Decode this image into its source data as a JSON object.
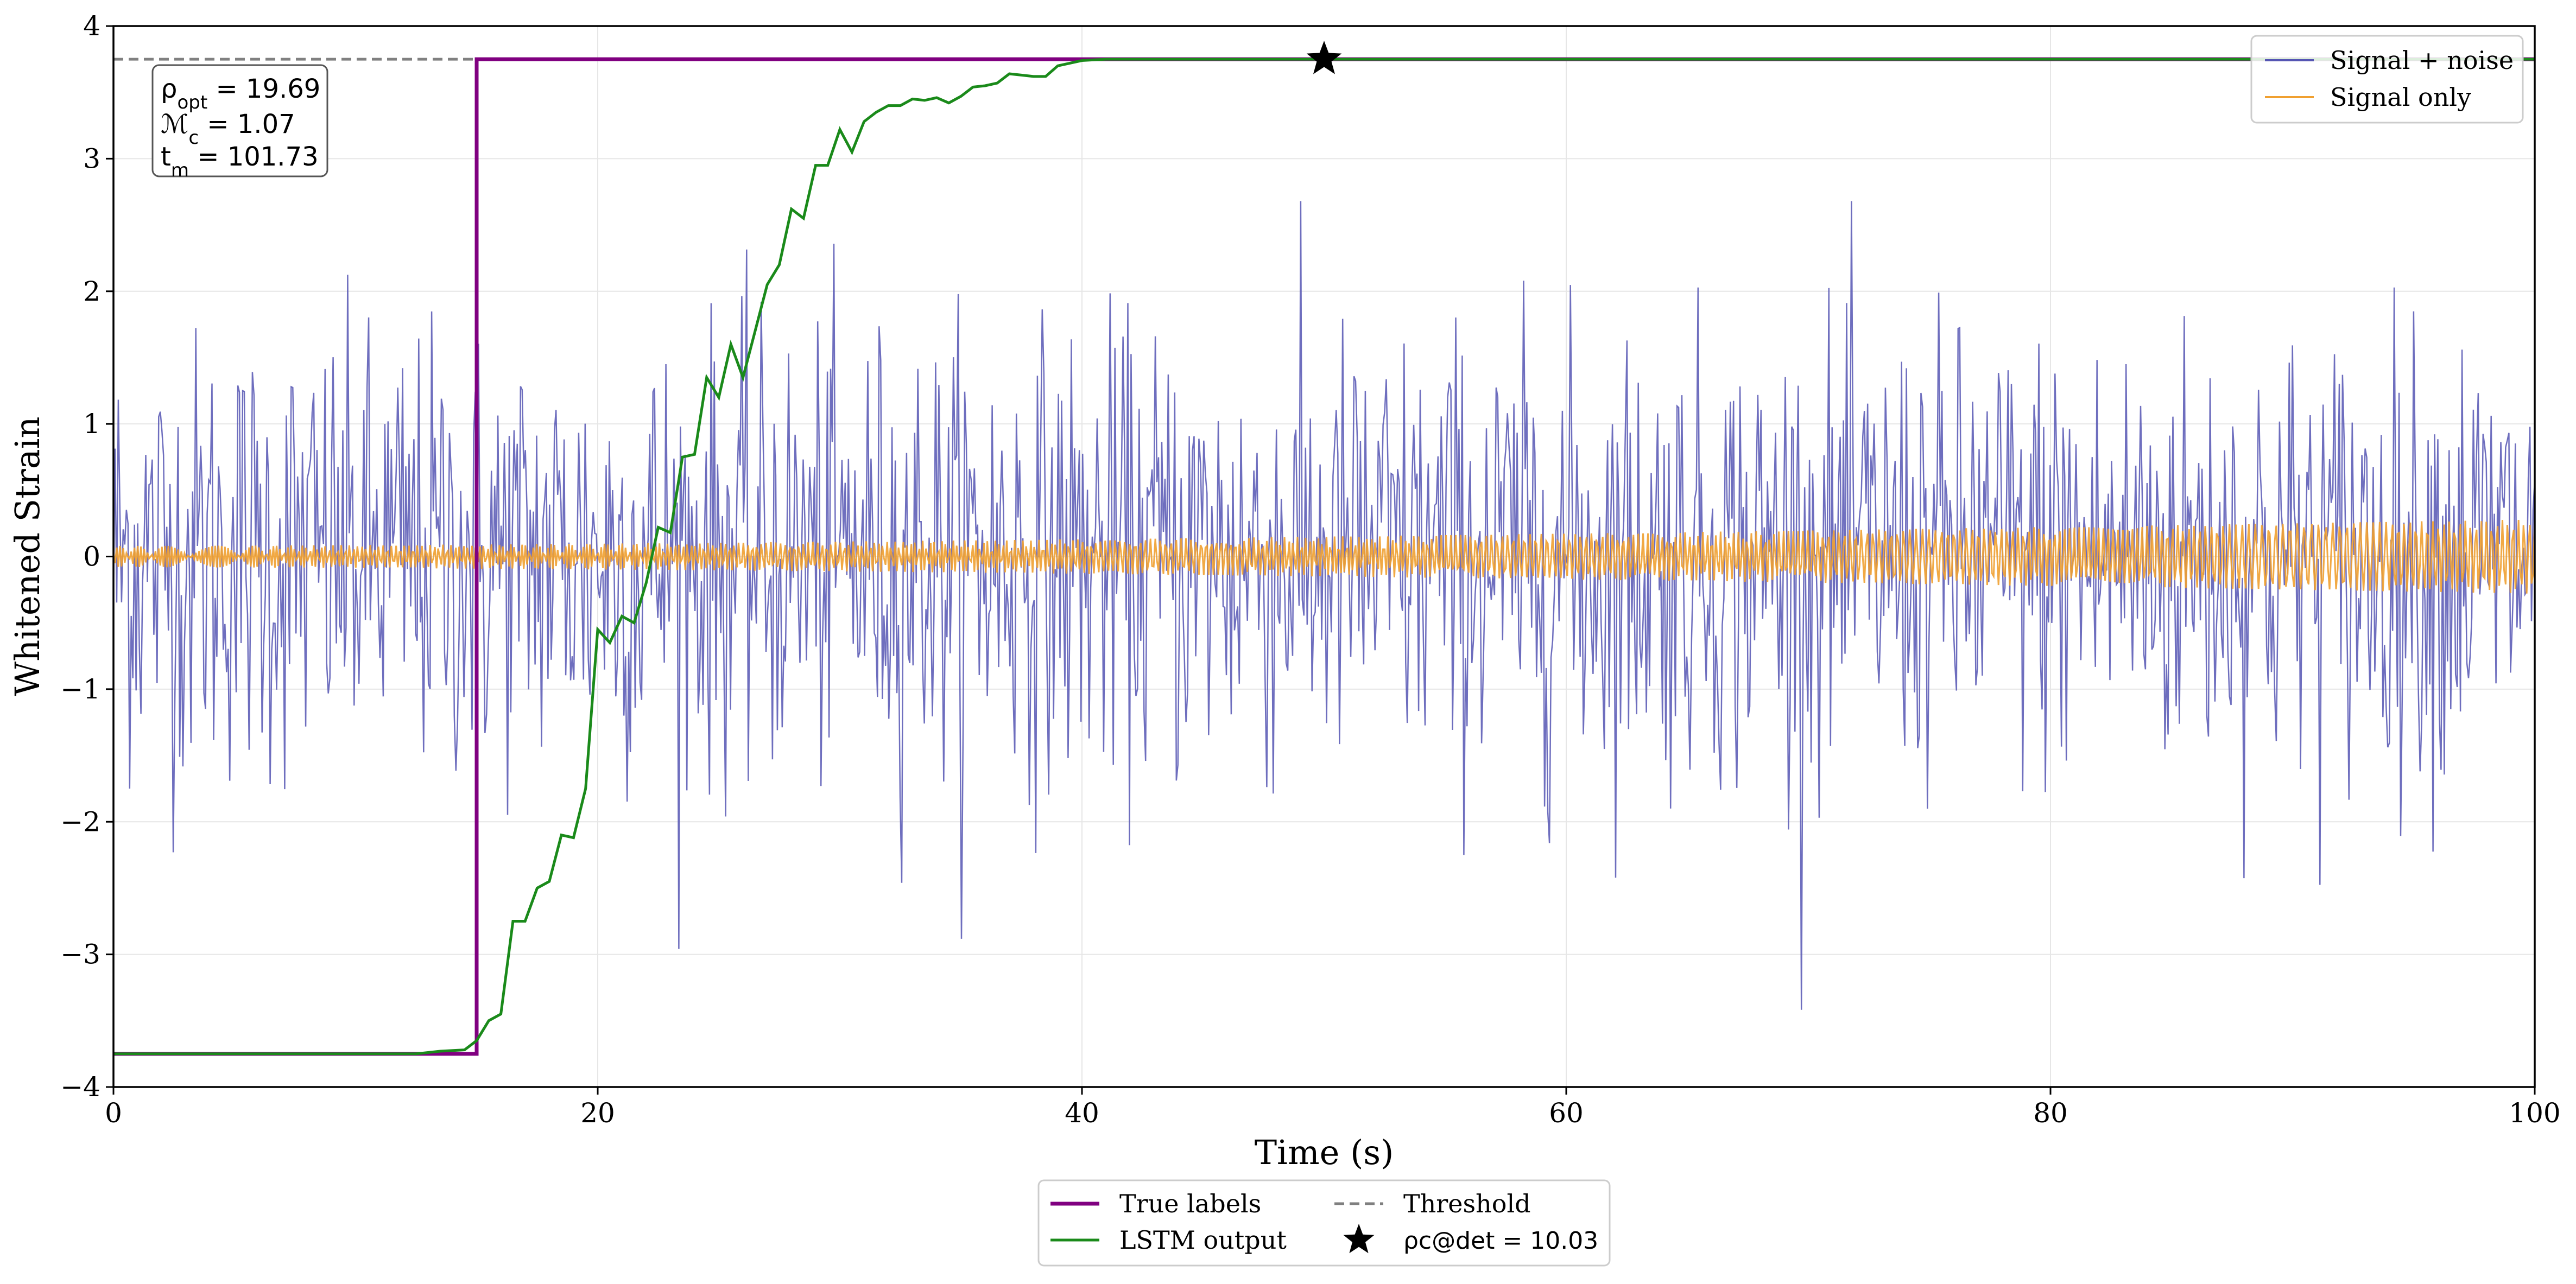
{
  "colors": {
    "signal_noise": "#5555b3",
    "signal_only": "#f0a030",
    "true_labels": "#800080",
    "lstm": "#1a8a1a",
    "threshold": "#808080",
    "star": "#000000",
    "grid": "#e6e6e6"
  },
  "chart_data": {
    "type": "line",
    "xlabel": "Time (s)",
    "ylabel": "Whitened Strain",
    "xlim": [
      0,
      100
    ],
    "ylim": [
      -4,
      4
    ],
    "x_ticks": [
      0,
      20,
      40,
      60,
      80,
      100
    ],
    "x_tick_labels": [
      "0",
      "20",
      "40",
      "60",
      "80",
      "100"
    ],
    "y_ticks": [
      -4,
      -3,
      -2,
      -1,
      0,
      1,
      2,
      3,
      4
    ],
    "y_tick_labels": [
      "−4",
      "−3",
      "−2",
      "−1",
      "0",
      "1",
      "2",
      "3",
      "4"
    ],
    "grid": true,
    "threshold": 3.75,
    "true_label_step_x": 15,
    "true_label_low": -3.75,
    "true_label_high": 3.75,
    "lstm_output": {
      "x": [
        0,
        5,
        10,
        12.5,
        13.5,
        14.5,
        15,
        15.5,
        16,
        16.5,
        17,
        17.5,
        18,
        18.5,
        19,
        19.5,
        20,
        20.5,
        21,
        21.5,
        22,
        22.5,
        23,
        23.5,
        24,
        24.5,
        25,
        25.5,
        26,
        26.5,
        27,
        27.5,
        28,
        28.5,
        29,
        29.5,
        30,
        30.5,
        31,
        31.5,
        32,
        32.5,
        33,
        33.5,
        34,
        34.5,
        35,
        35.5,
        36,
        36.5,
        37,
        37.5,
        38,
        38.5,
        39,
        39.5,
        40,
        40.5,
        41,
        41.5,
        42,
        43,
        45,
        50,
        60,
        80,
        100
      ],
      "y": [
        -3.75,
        -3.75,
        -3.75,
        -3.75,
        -3.73,
        -3.72,
        -3.65,
        -3.5,
        -3.45,
        -2.75,
        -2.75,
        -2.5,
        -2.45,
        -2.1,
        -2.12,
        -1.75,
        -0.55,
        -0.65,
        -0.45,
        -0.5,
        -0.2,
        0.22,
        0.18,
        0.75,
        0.77,
        1.35,
        1.2,
        1.6,
        1.35,
        1.7,
        2.05,
        2.2,
        2.62,
        2.55,
        2.95,
        2.95,
        3.22,
        3.05,
        3.28,
        3.35,
        3.4,
        3.4,
        3.45,
        3.44,
        3.46,
        3.42,
        3.47,
        3.54,
        3.55,
        3.57,
        3.64,
        3.63,
        3.62,
        3.62,
        3.7,
        3.72,
        3.74,
        3.745,
        3.75,
        3.75,
        3.75,
        3.75,
        3.75,
        3.75,
        3.75,
        3.75,
        3.75
      ]
    },
    "detection": {
      "x": 50,
      "y": 3.75
    },
    "signal_plus_noise": {
      "n_samples": 1500,
      "std": 0.85,
      "x_range": [
        0,
        100
      ]
    },
    "signal_only": {
      "n_samples": 1500,
      "amplitude_start": 0.08,
      "amplitude_end": 0.28,
      "x_range": [
        0,
        100
      ]
    },
    "legend_upper": [
      {
        "label": "Signal + noise",
        "color_key": "signal_noise"
      },
      {
        "label": "Signal only",
        "color_key": "signal_only"
      }
    ],
    "legend_lower": [
      {
        "label": "True labels",
        "color_key": "true_labels",
        "style": "solid"
      },
      {
        "label": "LSTM output",
        "color_key": "lstm",
        "style": "solid"
      },
      {
        "label": "Threshold",
        "color_key": "threshold",
        "style": "dashed"
      },
      {
        "label": "ρc@det = 10.03",
        "color_key": "star",
        "style": "star"
      }
    ],
    "annotation": {
      "rho_opt": "ρopt = 19.69",
      "chirp_mass": "ℳc = 1.07",
      "t_m": "tm = 101.73"
    }
  }
}
